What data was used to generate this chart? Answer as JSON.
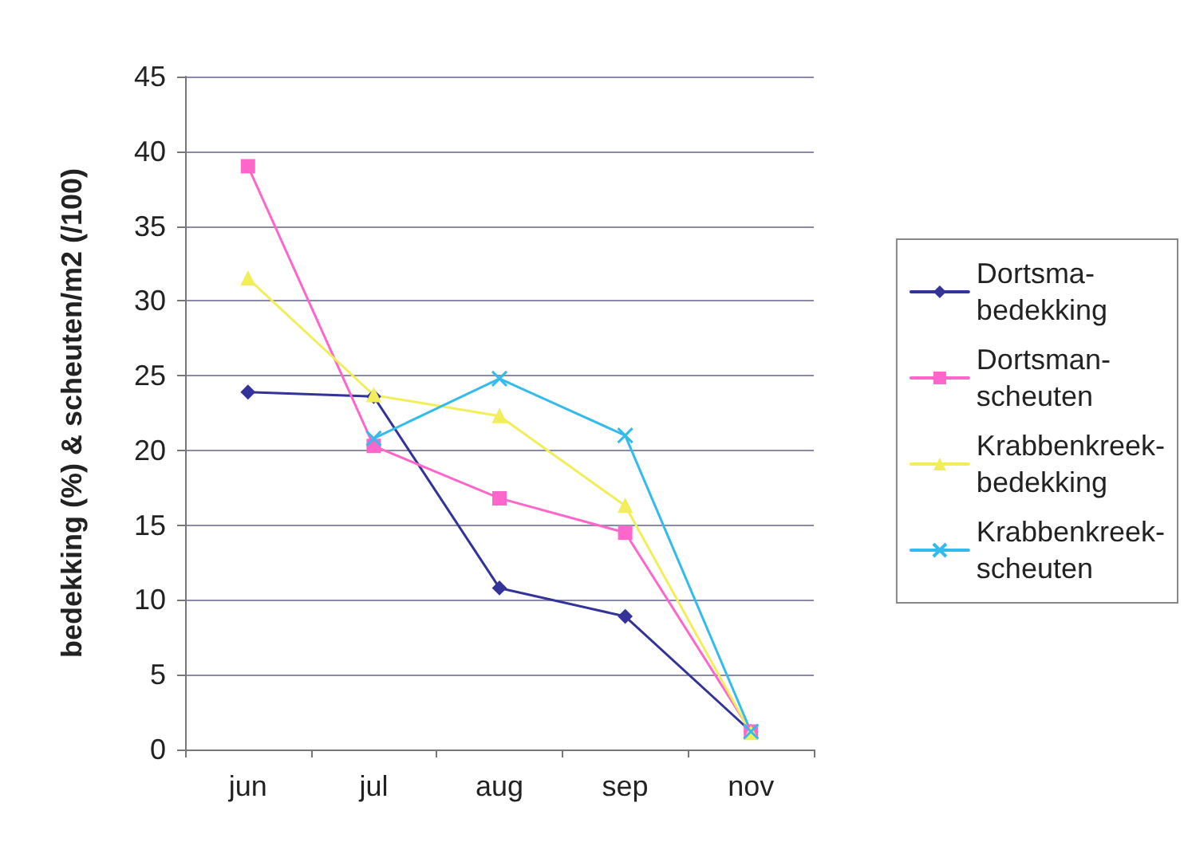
{
  "chart_data": {
    "type": "line",
    "ylabel": "bedekking (%) & scheuten/m2 (/100)",
    "categories": [
      "jun",
      "jul",
      "aug",
      "sep",
      "nov"
    ],
    "series": [
      {
        "name": "Dortsma-bedekking",
        "color": "#333399",
        "marker": "diamond",
        "values": [
          23.9,
          23.6,
          10.8,
          8.9,
          1.2
        ]
      },
      {
        "name": "Dortsman-scheuten",
        "color": "#ff66cc",
        "marker": "square",
        "values": [
          39,
          20.3,
          16.8,
          14.5,
          1.2
        ]
      },
      {
        "name": "Krabbenkreek-bedekking",
        "color": "#f2ee5a",
        "marker": "triangle",
        "values": [
          31.5,
          23.7,
          22.3,
          16.3,
          1.1
        ]
      },
      {
        "name": "Krabbenkreek-scheuten",
        "color": "#33bbee",
        "marker": "cross",
        "values": [
          null,
          20.8,
          24.8,
          21,
          1.2
        ]
      }
    ],
    "ylim": [
      0,
      45
    ],
    "yticks": [
      0,
      5,
      10,
      15,
      20,
      25,
      30,
      35,
      40,
      45
    ],
    "grid": "y",
    "legend": "right",
    "line_style": "solid"
  }
}
